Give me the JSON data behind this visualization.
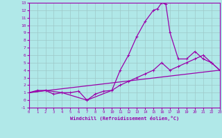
{
  "title": "",
  "ylabel": "",
  "bg_color": "#b0e8e8",
  "line_color": "#9900aa",
  "grid_color": "#aabbbb",
  "x_min": 0,
  "x_max": 23,
  "y_min": -1,
  "y_max": 13,
  "x_ticks": [
    0,
    1,
    2,
    3,
    4,
    5,
    6,
    7,
    8,
    9,
    10,
    11,
    12,
    13,
    14,
    15,
    16,
    17,
    18,
    19,
    20,
    21,
    22,
    23
  ],
  "y_ticks": [
    -1,
    0,
    1,
    2,
    3,
    4,
    5,
    6,
    7,
    8,
    9,
    10,
    11,
    12,
    13
  ],
  "series_low": {
    "x": [
      0,
      1,
      2,
      3,
      4,
      5,
      6,
      7,
      8,
      9,
      10,
      11,
      12,
      13,
      14,
      15,
      16,
      17,
      18,
      19,
      20,
      21,
      22,
      23
    ],
    "y": [
      1.0,
      1.3,
      1.3,
      0.8,
      1.0,
      1.0,
      1.2,
      0.0,
      0.8,
      1.2,
      1.3,
      2.0,
      2.5,
      3.0,
      3.5,
      4.0,
      5.0,
      4.0,
      4.5,
      5.0,
      5.5,
      6.0,
      5.0,
      4.0
    ]
  },
  "series_high": {
    "x": [
      0,
      2,
      4,
      7,
      10,
      11,
      12,
      13,
      14,
      15,
      15.5,
      16,
      16.5,
      17,
      18,
      19,
      20,
      21,
      22,
      23
    ],
    "y": [
      1.0,
      1.3,
      1.0,
      0.0,
      1.3,
      4.0,
      6.0,
      8.5,
      10.5,
      12.0,
      12.2,
      13.0,
      12.8,
      9.0,
      5.5,
      5.5,
      6.5,
      5.5,
      5.0,
      4.0
    ]
  },
  "series_line": {
    "x": [
      0,
      23
    ],
    "y": [
      1.0,
      4.0
    ]
  }
}
